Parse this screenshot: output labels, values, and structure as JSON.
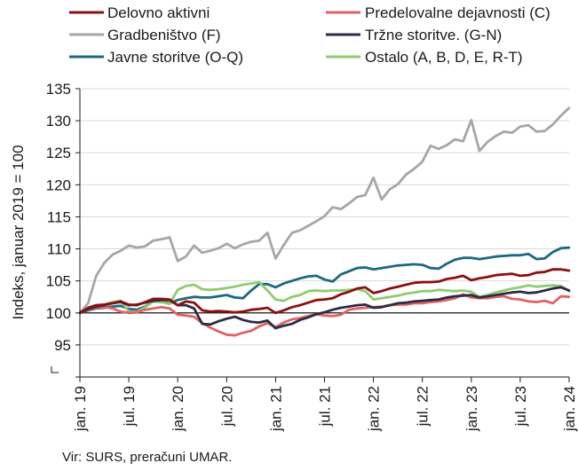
{
  "chart_data": {
    "type": "line",
    "ylabel": "Indeks, januar 2019 = 100",
    "ylim": [
      90,
      135
    ],
    "yticks": [
      95,
      100,
      105,
      110,
      115,
      120,
      125,
      130,
      135
    ],
    "xlim": [
      0,
      60
    ],
    "xticks": [
      {
        "i": 0,
        "label": "jan. 19"
      },
      {
        "i": 6,
        "label": "jul. 19"
      },
      {
        "i": 12,
        "label": "jan. 20"
      },
      {
        "i": 18,
        "label": "jul. 20"
      },
      {
        "i": 24,
        "label": "jan. 21"
      },
      {
        "i": 30,
        "label": "jul. 21"
      },
      {
        "i": 36,
        "label": "jan. 22"
      },
      {
        "i": 42,
        "label": "jul. 22"
      },
      {
        "i": 48,
        "label": "jan. 23"
      },
      {
        "i": 54,
        "label": "jul. 23"
      },
      {
        "i": 60,
        "label": "jan. 24"
      }
    ],
    "baseline": 100,
    "legend_position": "top",
    "series": [
      {
        "name": "Delovno aktivni",
        "color": "#8b0f0f",
        "values": [
          100,
          100.8,
          101.2,
          101.3,
          101.5,
          101.8,
          101.3,
          101.2,
          101.7,
          102.2,
          102.2,
          102.1,
          101.2,
          101.8,
          101.6,
          100.4,
          100.2,
          100.3,
          100.2,
          100.1,
          100.2,
          100.5,
          100.6,
          100.8,
          100,
          100.4,
          100.9,
          101.2,
          101.6,
          102,
          102.1,
          102.3,
          102.9,
          103.3,
          103.8,
          104,
          103.1,
          103.4,
          103.8,
          104.1,
          104.4,
          104.7,
          104.8,
          104.8,
          104.9,
          105.3,
          105.5,
          105.8,
          105.1,
          105.4,
          105.6,
          105.9,
          106,
          106.1,
          105.8,
          105.9,
          106.3,
          106.4,
          106.8,
          106.8,
          106.6
        ]
      },
      {
        "name": "Predelovalne dejavnosti (C)",
        "color": "#e06262",
        "values": [
          100,
          100.5,
          100.8,
          100.9,
          100.7,
          100.2,
          100,
          100.1,
          100.5,
          100.7,
          100.9,
          100.7,
          99.7,
          99.6,
          99.4,
          98.4,
          97.7,
          97.1,
          96.6,
          96.5,
          96.9,
          97.2,
          97.9,
          98.4,
          97.8,
          98.5,
          99,
          99.2,
          99.5,
          99.8,
          99.6,
          99.5,
          99.7,
          100.5,
          100.7,
          100.8,
          100.9,
          101,
          101.2,
          101.3,
          101.3,
          101.5,
          101.5,
          101.7,
          101.8,
          102,
          102.3,
          102.9,
          102.4,
          102.3,
          102.3,
          102.5,
          102.6,
          102.2,
          102.1,
          101.8,
          101.7,
          101.9,
          101.5,
          102.6,
          102.5
        ]
      },
      {
        "name": "Gradbeništvo (F)",
        "color": "#a6a6a6",
        "values": [
          100,
          101.5,
          105.8,
          107.8,
          109.1,
          109.7,
          110.5,
          110.2,
          110.4,
          111.3,
          111.5,
          111.8,
          108.1,
          108.8,
          110.5,
          109.4,
          109.7,
          110.1,
          110.8,
          110.1,
          110.7,
          111.1,
          111.3,
          112.5,
          108.5,
          110.6,
          112.5,
          112.9,
          113.6,
          114.3,
          115.1,
          116.5,
          116.2,
          117.1,
          118.1,
          118.4,
          121.1,
          117.7,
          119.3,
          120.1,
          121.6,
          122.5,
          123.6,
          126.1,
          125.6,
          126.2,
          127.1,
          126.8,
          130.1,
          125.3,
          126.7,
          127.6,
          128.3,
          128.1,
          129.1,
          129.3,
          128.3,
          128.4,
          129.4,
          130.8,
          132
        ]
      },
      {
        "name": "Tržne storitve. (G-N)",
        "color": "#2b2b45",
        "values": [
          100,
          100.6,
          101,
          101.2,
          101.5,
          101.7,
          101.2,
          101.3,
          101.6,
          101.9,
          102,
          102,
          101.2,
          101.2,
          100.7,
          98.3,
          98.2,
          98.7,
          99.1,
          99.4,
          98.9,
          98.6,
          98.5,
          98.8,
          97.6,
          98,
          98.3,
          98.9,
          99.3,
          99.8,
          100.1,
          100.5,
          100.8,
          101,
          101.2,
          101.3,
          100.8,
          100.9,
          101.2,
          101.5,
          101.6,
          101.8,
          101.9,
          102,
          102.1,
          102.4,
          102.6,
          102.7,
          102.8,
          102.4,
          102.6,
          102.8,
          103,
          103.2,
          103.3,
          103.1,
          103.2,
          103.5,
          103.8,
          104,
          103.5
        ]
      },
      {
        "name": "Javne storitve (O-Q)",
        "color": "#1b6882",
        "values": [
          100,
          100.4,
          100.7,
          100.8,
          101,
          101.1,
          100.6,
          100.5,
          101,
          101.8,
          101.7,
          101.5,
          102,
          102.3,
          102.5,
          102.4,
          102.4,
          102.6,
          102.8,
          102.4,
          102.3,
          103.5,
          104.5,
          104.5,
          104,
          104.6,
          105,
          105.4,
          105.7,
          105.8,
          105.2,
          104.9,
          106,
          106.5,
          107,
          107.1,
          106.8,
          107,
          107.2,
          107.4,
          107.5,
          107.6,
          107.5,
          107,
          106.9,
          107.7,
          108.3,
          108.6,
          108.6,
          108.4,
          108.6,
          108.8,
          108.9,
          109,
          109,
          109.2,
          108.4,
          108.5,
          109.5,
          110.1,
          110.2
        ]
      },
      {
        "name": "Ostalo (A, B, D, E, R-T)",
        "color": "#8fcc6e",
        "values": [
          100,
          100.8,
          101.2,
          101.3,
          101.7,
          101.9,
          100.2,
          100.2,
          100.9,
          101.8,
          101.7,
          101.4,
          103.6,
          104.2,
          104.4,
          103.7,
          103.6,
          103.7,
          103.9,
          104.1,
          104.4,
          104.6,
          104.8,
          103.5,
          102.1,
          101.9,
          102.5,
          102.8,
          103.4,
          103.5,
          103.4,
          103.5,
          103.5,
          103.6,
          103.7,
          103.4,
          102.1,
          102.3,
          102.5,
          102.7,
          103,
          103.2,
          103.4,
          103.4,
          103.6,
          103.5,
          103.4,
          103.5,
          103.3,
          102.5,
          102.8,
          103.2,
          103.5,
          103.8,
          104,
          104.3,
          104.1,
          104.2,
          104.3,
          104.2,
          103.4
        ]
      }
    ]
  },
  "source": "Vir: SURS, preračuni UMAR."
}
